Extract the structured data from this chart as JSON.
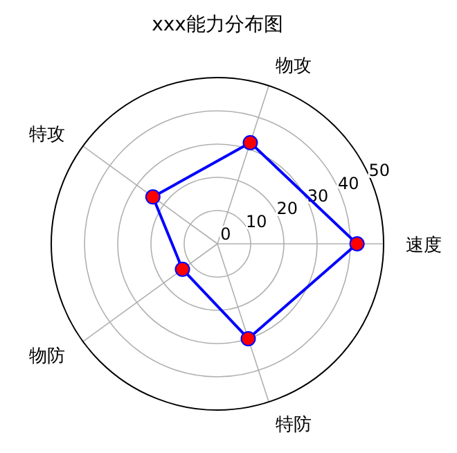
{
  "chart_data": {
    "type": "radar",
    "title": "xxx能力分布图",
    "categories": [
      "物攻",
      "速度",
      "特防",
      "物防",
      "特攻"
    ],
    "series": [
      {
        "color": "#0000ff",
        "values": [
          32,
          42,
          30,
          13,
          24
        ]
      }
    ],
    "ylim": [
      0,
      50
    ],
    "yticks": [
      0,
      10,
      20,
      30,
      40,
      50
    ],
    "grid": true,
    "marker": "circle",
    "line_style": "solid"
  }
}
